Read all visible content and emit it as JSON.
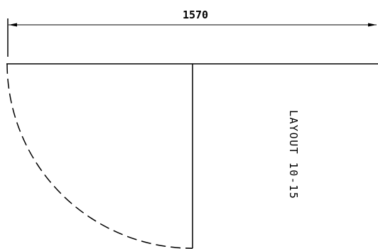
{
  "drawing": {
    "dimension_label": "1570",
    "layout_label": "LAYOUT 10-15",
    "colors": {
      "line": "#000000",
      "background": "#ffffff"
    }
  }
}
